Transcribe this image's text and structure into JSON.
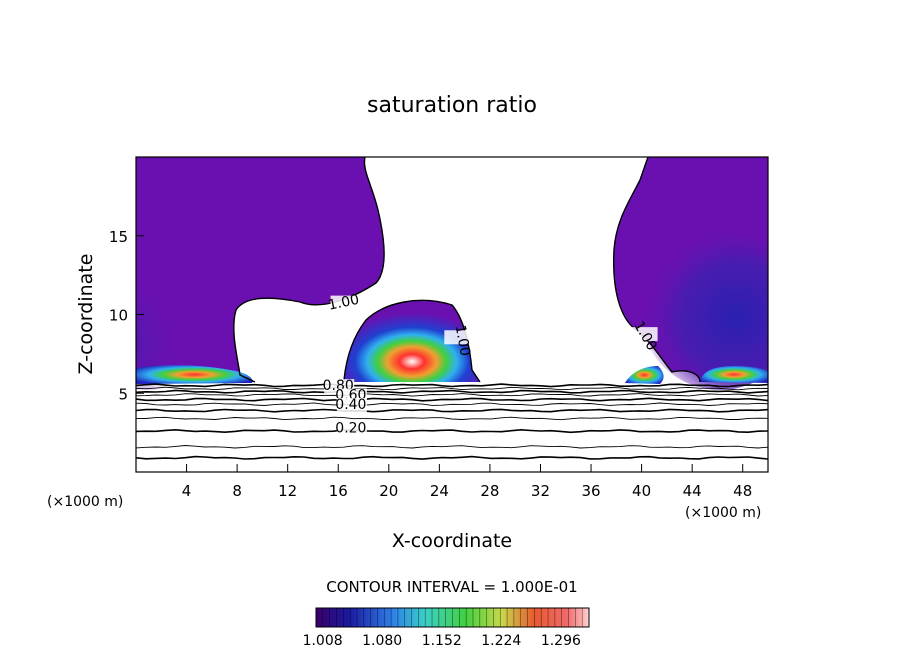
{
  "chart_data": {
    "type": "heatmap",
    "title": "saturation ratio",
    "xlabel": "X-coordinate",
    "ylabel": "Z-coordinate",
    "x_unit_left": "(×1000 m)",
    "x_unit_right": "(×1000 m)",
    "xlim": [
      0,
      50
    ],
    "ylim": [
      0,
      20
    ],
    "x_ticks": [
      4,
      8,
      12,
      16,
      20,
      24,
      28,
      32,
      36,
      40,
      44,
      48
    ],
    "y_ticks": [
      5,
      10,
      15
    ],
    "grid": false,
    "contour_interval_label": "CONTOUR INTERVAL = 1.000E-01",
    "colorbar": {
      "min": 1.0,
      "max": 1.33,
      "tick_labels": [
        "1.008",
        "1.080",
        "1.152",
        "1.224",
        "1.296"
      ],
      "tick_values": [
        1.008,
        1.08,
        1.152,
        1.224,
        1.296
      ]
    },
    "contour_labels": [
      {
        "text": "1.00",
        "x": 16.5,
        "z": 10.5
      },
      {
        "text": "1.00",
        "x": 25.5,
        "z": 8.3
      },
      {
        "text": "1.00",
        "x": 40.0,
        "z": 8.5
      },
      {
        "text": "0.80",
        "x": 16.0,
        "z": 5.2
      },
      {
        "text": "0.60",
        "x": 17.0,
        "z": 4.6
      },
      {
        "text": "0.40",
        "x": 17.0,
        "z": 4.0
      },
      {
        "text": "0.20",
        "x": 17.0,
        "z": 2.5
      }
    ],
    "contour_lines_z": [
      0.9,
      1.6,
      2.6,
      3.4,
      3.9,
      4.3,
      4.6,
      4.9,
      5.1,
      5.3,
      5.5
    ],
    "supersaturated_regions": [
      {
        "x": [
          0.0,
          9.5
        ],
        "z": [
          5.5,
          20.0
        ],
        "peak_value": 1.3
      },
      {
        "x": [
          16.5,
          27.0
        ],
        "z": [
          5.6,
          10.5
        ],
        "peak_value": 1.33
      },
      {
        "x": [
          38.5,
          50.0
        ],
        "z": [
          5.5,
          20.0
        ],
        "peak_value": 1.3
      }
    ]
  }
}
